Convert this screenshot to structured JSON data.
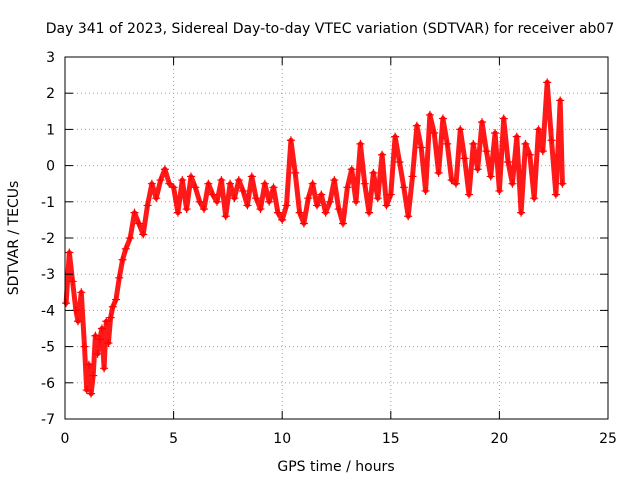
{
  "chart_data": {
    "type": "scatter",
    "title": "Day 341 of 2023, Sidereal Day-to-day VTEC variation (SDTVAR) for receiver ab07",
    "xlabel": "GPS time / hours",
    "ylabel": "SDTVAR / TECUs",
    "xlim": [
      0,
      25
    ],
    "ylim": [
      -7,
      3
    ],
    "xticks": [
      0,
      5,
      10,
      15,
      20,
      25
    ],
    "yticks": [
      -7,
      -6,
      -5,
      -4,
      -3,
      -2,
      -1,
      0,
      1,
      2,
      3
    ],
    "grid": true,
    "marker": "+",
    "series": [
      {
        "name": "SDTVAR",
        "color": "#ff0000",
        "x": [
          0.05,
          0.2,
          0.35,
          0.5,
          0.6,
          0.75,
          0.9,
          1.0,
          1.1,
          1.2,
          1.3,
          1.4,
          1.5,
          1.6,
          1.7,
          1.8,
          1.9,
          2.0,
          2.1,
          2.2,
          2.35,
          2.5,
          2.65,
          2.8,
          3.0,
          3.2,
          3.4,
          3.6,
          3.8,
          4.0,
          4.2,
          4.4,
          4.6,
          4.8,
          5.0,
          5.2,
          5.4,
          5.6,
          5.8,
          6.0,
          6.2,
          6.4,
          6.6,
          6.8,
          7.0,
          7.2,
          7.4,
          7.6,
          7.8,
          8.0,
          8.2,
          8.4,
          8.6,
          8.8,
          9.0,
          9.2,
          9.4,
          9.6,
          9.8,
          10.0,
          10.2,
          10.4,
          10.6,
          10.8,
          11.0,
          11.2,
          11.4,
          11.6,
          11.8,
          12.0,
          12.2,
          12.4,
          12.6,
          12.8,
          13.0,
          13.2,
          13.4,
          13.6,
          13.8,
          14.0,
          14.2,
          14.4,
          14.6,
          14.8,
          15.0,
          15.2,
          15.4,
          15.6,
          15.8,
          16.0,
          16.2,
          16.4,
          16.6,
          16.8,
          17.0,
          17.2,
          17.4,
          17.6,
          17.8,
          18.0,
          18.2,
          18.4,
          18.6,
          18.8,
          19.0,
          19.2,
          19.4,
          19.6,
          19.8,
          20.0,
          20.2,
          20.4,
          20.6,
          20.8,
          21.0,
          21.2,
          21.4,
          21.6,
          21.8,
          22.0,
          22.2,
          22.4,
          22.6,
          22.8,
          22.9
        ],
        "y": [
          -3.8,
          -2.4,
          -3.2,
          -4.0,
          -4.3,
          -3.5,
          -5.0,
          -6.2,
          -5.5,
          -6.3,
          -5.8,
          -4.7,
          -5.2,
          -4.8,
          -4.5,
          -5.6,
          -4.3,
          -4.9,
          -4.2,
          -3.9,
          -3.7,
          -3.1,
          -2.6,
          -2.3,
          -2.0,
          -1.3,
          -1.6,
          -1.9,
          -1.1,
          -0.5,
          -0.9,
          -0.4,
          -0.1,
          -0.5,
          -0.6,
          -1.3,
          -0.4,
          -1.2,
          -0.3,
          -0.6,
          -1.0,
          -1.2,
          -0.5,
          -0.8,
          -1.0,
          -0.4,
          -1.4,
          -0.5,
          -0.9,
          -0.4,
          -0.7,
          -1.1,
          -0.3,
          -0.9,
          -1.2,
          -0.5,
          -1.0,
          -0.6,
          -1.3,
          -1.5,
          -1.1,
          0.7,
          -0.2,
          -1.3,
          -1.6,
          -0.9,
          -0.5,
          -1.1,
          -0.8,
          -1.3,
          -1.0,
          -0.4,
          -1.2,
          -1.6,
          -0.6,
          -0.1,
          -1.0,
          0.6,
          -0.5,
          -1.3,
          -0.2,
          -0.9,
          0.3,
          -1.1,
          -0.8,
          0.8,
          0.1,
          -0.6,
          -1.4,
          -0.3,
          1.1,
          0.5,
          -0.7,
          1.4,
          0.9,
          -0.2,
          1.3,
          0.6,
          -0.4,
          -0.5,
          1.0,
          0.2,
          -0.8,
          0.6,
          -0.1,
          1.2,
          0.4,
          -0.3,
          0.9,
          -0.7,
          1.3,
          0.1,
          -0.5,
          0.8,
          -1.3,
          0.6,
          0.3,
          -0.9,
          1.0,
          0.4,
          2.3,
          0.7,
          -0.8,
          1.8,
          -0.5
        ]
      }
    ]
  }
}
